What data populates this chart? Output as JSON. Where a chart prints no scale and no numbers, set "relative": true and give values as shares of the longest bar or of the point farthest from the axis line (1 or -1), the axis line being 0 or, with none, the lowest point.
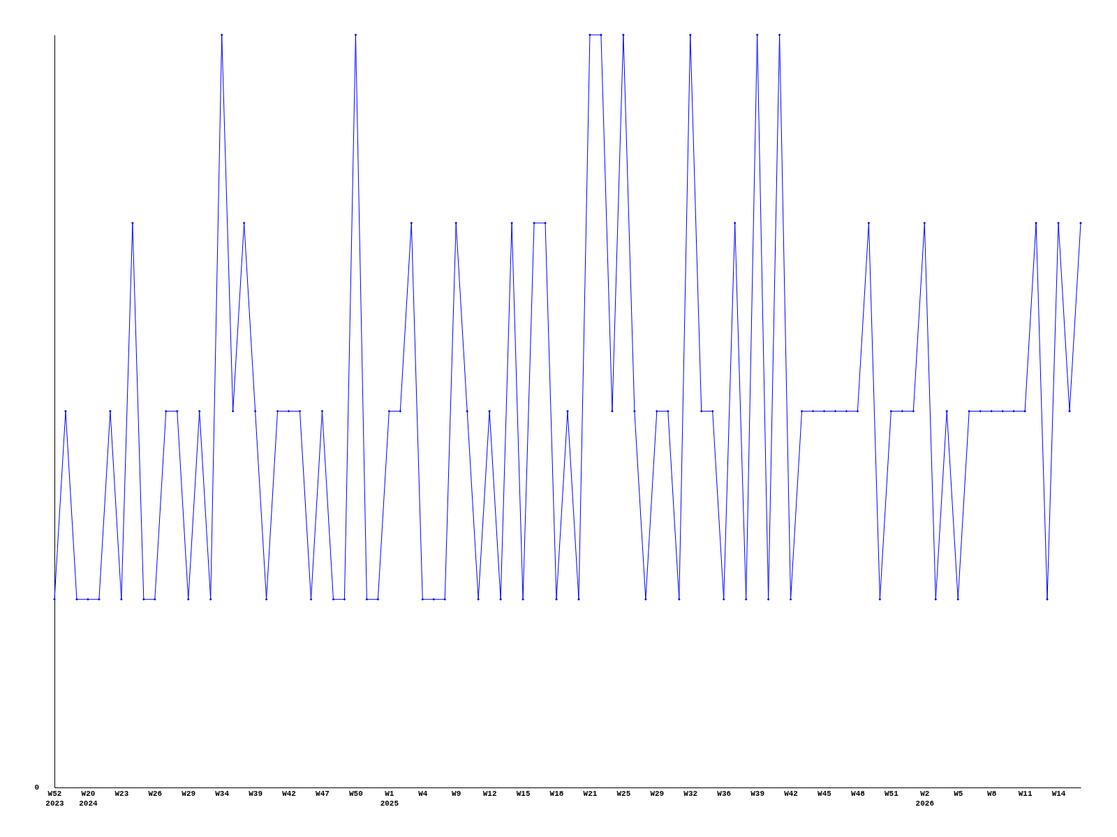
{
  "chart_data": {
    "type": "line",
    "relative": true,
    "marker": "diamond",
    "grid": false,
    "annotations": [
      "0"
    ],
    "categories": [
      "W52\n2023",
      null,
      null,
      "W20\n2024",
      null,
      null,
      "W23",
      null,
      null,
      "W26",
      null,
      null,
      "W29",
      null,
      null,
      "W34",
      null,
      null,
      "W39",
      null,
      null,
      "W42",
      null,
      null,
      "W47",
      null,
      null,
      "W50",
      null,
      null,
      "W1\n2025",
      null,
      null,
      "W4",
      null,
      null,
      "W9",
      null,
      null,
      "W12",
      null,
      null,
      "W15",
      null,
      null,
      "W18",
      null,
      null,
      "W21",
      null,
      null,
      "W25",
      null,
      null,
      "W29",
      null,
      null,
      "W32",
      null,
      null,
      "W36",
      null,
      null,
      "W39",
      null,
      null,
      "W42",
      null,
      null,
      "W45",
      null,
      null,
      "W48",
      null,
      null,
      "W51",
      null,
      null,
      "W2\n2026",
      null,
      null,
      "W5",
      null,
      null,
      "W8",
      null,
      null,
      "W11",
      null,
      null,
      "W14",
      null,
      null
    ],
    "series": [
      {
        "color": "#0000ff",
        "values": [
          0.25,
          0.5,
          0.25,
          0.25,
          0.25,
          0.5,
          0.25,
          0.75,
          0.25,
          0.25,
          0.5,
          0.5,
          0.25,
          0.5,
          0.25,
          1,
          0.5,
          0.75,
          0.5,
          0.25,
          0.5,
          0.5,
          0.5,
          0.25,
          0.5,
          0.25,
          0.25,
          1,
          0.25,
          0.25,
          0.5,
          0.5,
          0.75,
          0.25,
          0.25,
          0.25,
          0.75,
          0.5,
          0.25,
          0.5,
          0.25,
          0.75,
          0.25,
          0.75,
          0.75,
          0.25,
          0.5,
          0.25,
          1,
          1,
          0.5,
          1,
          0.5,
          0.25,
          0.5,
          0.5,
          0.25,
          1,
          0.5,
          0.5,
          0.25,
          0.75,
          0.25,
          1,
          0.25,
          1,
          0.25,
          0.5,
          0.5,
          0.5,
          0.5,
          0.5,
          0.5,
          0.75,
          0.25,
          0.5,
          0.5,
          0.5,
          0.75,
          0.25,
          0.5,
          0.25,
          0.5,
          0.5,
          0.5,
          0.5,
          0.5,
          0.5,
          0.75,
          0.25,
          0.75,
          0.5,
          0.75
        ]
      }
    ]
  }
}
